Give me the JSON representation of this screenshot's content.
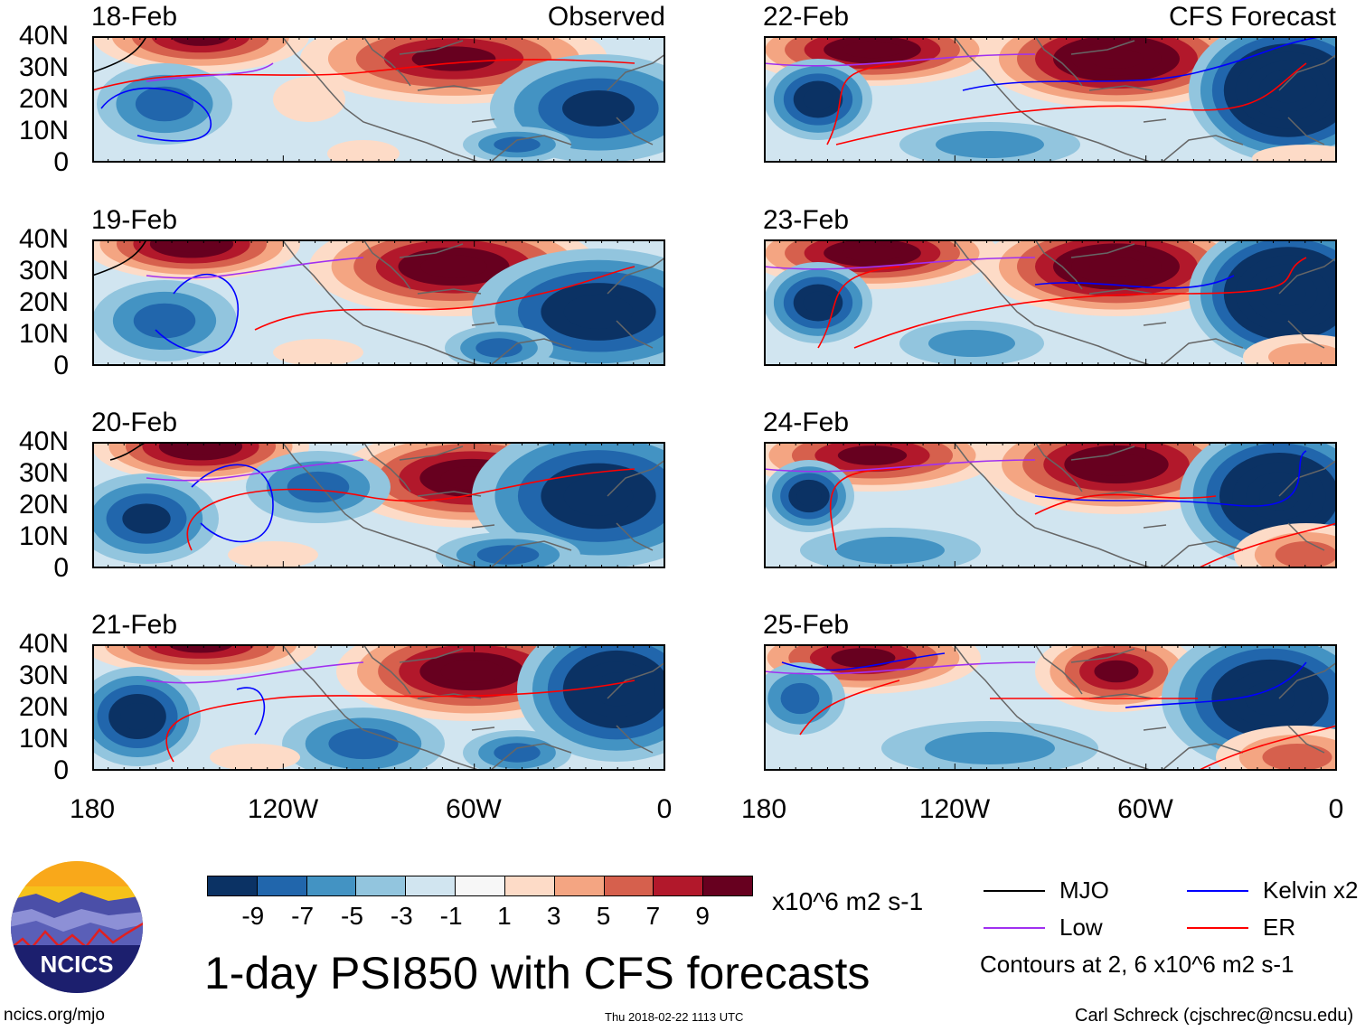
{
  "chart_data": {
    "type": "heatmap",
    "title": "1-day PSI850 with CFS forecasts",
    "variable": "PSI850",
    "units": "x10^6 m2 s-1",
    "observed_label": "Observed",
    "forecast_label": "CFS Forecast",
    "lat_ticks": [
      "40N",
      "30N",
      "20N",
      "10N",
      "0"
    ],
    "lon_ticks": [
      "180",
      "120W",
      "60W",
      "0"
    ],
    "lat_range": [
      0,
      40
    ],
    "lon_range": [
      -180,
      0
    ],
    "panels": [
      {
        "date": "18-Feb",
        "type": "observed"
      },
      {
        "date": "19-Feb",
        "type": "observed"
      },
      {
        "date": "20-Feb",
        "type": "observed"
      },
      {
        "date": "21-Feb",
        "type": "observed"
      },
      {
        "date": "22-Feb",
        "type": "forecast"
      },
      {
        "date": "23-Feb",
        "type": "forecast"
      },
      {
        "date": "24-Feb",
        "type": "forecast"
      },
      {
        "date": "25-Feb",
        "type": "forecast"
      }
    ],
    "colorbar": {
      "ticks": [
        "-9",
        "-7",
        "-5",
        "-3",
        "-1",
        "1",
        "3",
        "5",
        "7",
        "9"
      ],
      "colors": [
        "#0b3264",
        "#2166ac",
        "#4393c3",
        "#92c5de",
        "#d1e5f0",
        "#f7f7f7",
        "#fddbc7",
        "#f4a582",
        "#d6604d",
        "#b2182b",
        "#67001f"
      ]
    },
    "legend": [
      {
        "label": "MJO",
        "color": "#000000"
      },
      {
        "label": "Kelvin x2",
        "color": "#0000ff"
      },
      {
        "label": "Low",
        "color": "#a030f0"
      },
      {
        "label": "ER",
        "color": "#ff0000"
      }
    ],
    "contour_note": "Contours at 2, 6 x10^6 m2 s-1"
  },
  "footer": {
    "logo_text": "NCICS",
    "url": "ncics.org/mjo",
    "timestamp": "Thu 2018-02-22 1113 UTC",
    "credit": "Carl Schreck (cjschrec@ncsu.edu)"
  }
}
